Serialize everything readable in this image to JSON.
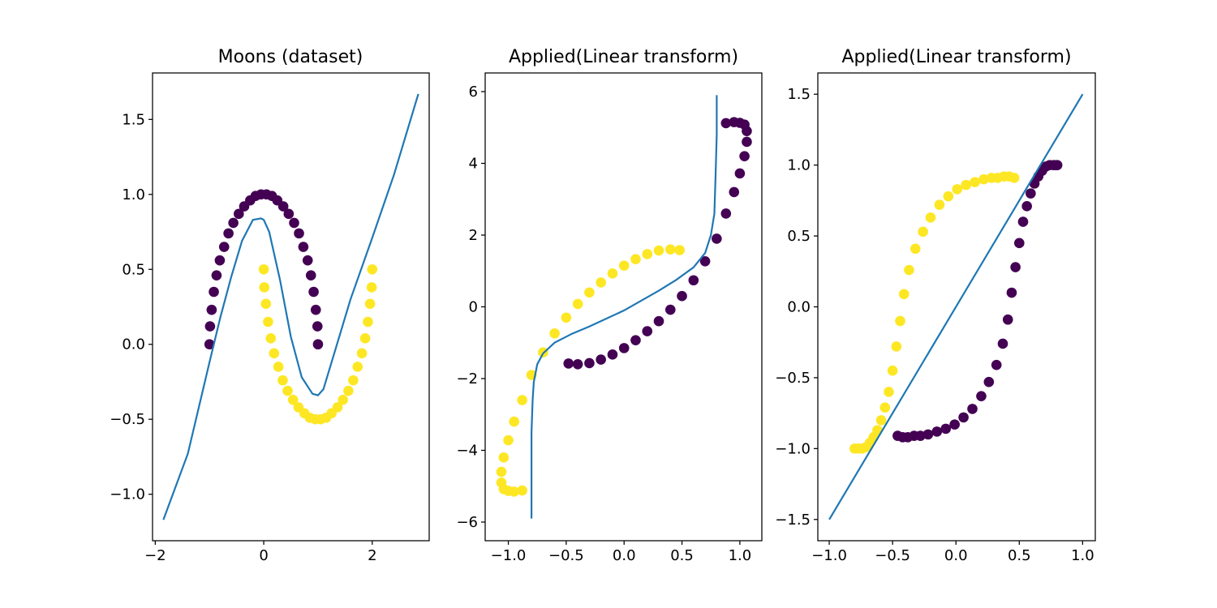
{
  "chart_data": [
    {
      "type": "scatter",
      "title": "Moons (dataset)",
      "xlim": [
        -2.05,
        3.05
      ],
      "ylim": [
        -1.31,
        1.81
      ],
      "xticks": [
        {
          "v": -2,
          "label": "−2"
        },
        {
          "v": 0,
          "label": "0"
        },
        {
          "v": 2,
          "label": "2"
        }
      ],
      "yticks": [
        {
          "v": -1.0,
          "label": "−1.0"
        },
        {
          "v": -0.5,
          "label": "−0.5"
        },
        {
          "v": 0.0,
          "label": "0.0"
        },
        {
          "v": 0.5,
          "label": "0.5"
        },
        {
          "v": 1.0,
          "label": "1.0"
        },
        {
          "v": 1.5,
          "label": "1.5"
        }
      ],
      "series": [
        {
          "kind": "points",
          "color": "#440154",
          "x": [
            -1.0,
            -0.99,
            -0.96,
            -0.92,
            -0.87,
            -0.81,
            -0.73,
            -0.65,
            -0.56,
            -0.46,
            -0.36,
            -0.25,
            -0.15,
            -0.05,
            0.05,
            0.15,
            0.25,
            0.36,
            0.46,
            0.56,
            0.65,
            0.73,
            0.81,
            0.87,
            0.92,
            0.96,
            0.99,
            1.0
          ],
          "y": [
            0.0,
            0.12,
            0.23,
            0.35,
            0.46,
            0.56,
            0.65,
            0.74,
            0.81,
            0.87,
            0.92,
            0.96,
            0.99,
            1.0,
            1.0,
            0.99,
            0.96,
            0.92,
            0.87,
            0.81,
            0.74,
            0.65,
            0.56,
            0.46,
            0.35,
            0.23,
            0.12,
            0.0
          ]
        },
        {
          "kind": "points",
          "color": "#fde725",
          "x": [
            0.0,
            0.01,
            0.04,
            0.08,
            0.13,
            0.19,
            0.27,
            0.35,
            0.44,
            0.54,
            0.64,
            0.75,
            0.85,
            0.95,
            1.05,
            1.15,
            1.25,
            1.36,
            1.46,
            1.56,
            1.65,
            1.73,
            1.81,
            1.87,
            1.92,
            1.96,
            1.99,
            2.0
          ],
          "y": [
            0.5,
            0.38,
            0.27,
            0.15,
            0.04,
            -0.06,
            -0.15,
            -0.24,
            -0.31,
            -0.37,
            -0.42,
            -0.46,
            -0.49,
            -0.5,
            -0.5,
            -0.49,
            -0.46,
            -0.42,
            -0.37,
            -0.31,
            -0.24,
            -0.15,
            -0.06,
            0.04,
            0.15,
            0.27,
            0.38,
            0.5
          ]
        },
        {
          "kind": "line",
          "color": "#1f77b4",
          "x": [
            -1.85,
            -1.4,
            -1.0,
            -0.8,
            -0.6,
            -0.4,
            -0.2,
            -0.05,
            0.0,
            0.1,
            0.3,
            0.5,
            0.7,
            0.9,
            1.0,
            1.1,
            1.3,
            1.6,
            2.0,
            2.4,
            2.85
          ],
          "y": [
            -1.17,
            -0.73,
            -0.12,
            0.18,
            0.45,
            0.69,
            0.83,
            0.84,
            0.83,
            0.75,
            0.43,
            0.05,
            -0.22,
            -0.33,
            -0.34,
            -0.3,
            -0.06,
            0.3,
            0.71,
            1.13,
            1.67
          ]
        }
      ]
    },
    {
      "type": "scatter",
      "title": "Applied(Linear transform)",
      "xlim": [
        -1.2,
        1.19
      ],
      "ylim": [
        -6.52,
        6.52
      ],
      "xticks": [
        {
          "v": -1.0,
          "label": "−1.0"
        },
        {
          "v": -0.5,
          "label": "−0.5"
        },
        {
          "v": 0.0,
          "label": "0.0"
        },
        {
          "v": 0.5,
          "label": "0.5"
        },
        {
          "v": 1.0,
          "label": "1.0"
        }
      ],
      "yticks": [
        {
          "v": -6,
          "label": "−6"
        },
        {
          "v": -4,
          "label": "−4"
        },
        {
          "v": -2,
          "label": "−2"
        },
        {
          "v": 0,
          "label": "0"
        },
        {
          "v": 2,
          "label": "2"
        },
        {
          "v": 4,
          "label": "4"
        },
        {
          "v": 6,
          "label": "6"
        }
      ],
      "series": [
        {
          "kind": "points",
          "color": "#440154",
          "x": [
            -0.48,
            -0.4,
            -0.3,
            -0.2,
            -0.1,
            0.0,
            0.1,
            0.2,
            0.3,
            0.4,
            0.5,
            0.6,
            0.7,
            0.8,
            0.88,
            0.95,
            1.0,
            1.04,
            1.06,
            1.06,
            1.04,
            1.0,
            0.95,
            0.88
          ],
          "y": [
            -1.58,
            -1.6,
            -1.57,
            -1.47,
            -1.33,
            -1.15,
            -0.93,
            -0.68,
            -0.4,
            -0.08,
            0.3,
            0.74,
            1.27,
            1.9,
            2.6,
            3.2,
            3.72,
            4.2,
            4.6,
            4.9,
            5.08,
            5.13,
            5.15,
            5.12
          ]
        },
        {
          "kind": "points",
          "color": "#fde725",
          "x": [
            -0.88,
            -0.95,
            -1.0,
            -1.04,
            -1.06,
            -1.06,
            -1.04,
            -1.0,
            -0.95,
            -0.88,
            -0.8,
            -0.7,
            -0.6,
            -0.5,
            -0.4,
            -0.3,
            -0.2,
            -0.1,
            0.0,
            0.1,
            0.2,
            0.3,
            0.4,
            0.48
          ],
          "y": [
            -5.12,
            -5.15,
            -5.13,
            -5.08,
            -4.9,
            -4.6,
            -4.2,
            -3.72,
            -3.2,
            -2.6,
            -1.9,
            -1.27,
            -0.74,
            -0.3,
            0.08,
            0.4,
            0.68,
            0.93,
            1.15,
            1.33,
            1.47,
            1.57,
            1.6,
            1.58
          ]
        },
        {
          "kind": "line",
          "color": "#1f77b4",
          "x": [
            -0.8,
            -0.8,
            -0.79,
            -0.78,
            -0.75,
            -0.7,
            -0.6,
            -0.45,
            -0.3,
            0.0,
            0.3,
            0.45,
            0.6,
            0.7,
            0.75,
            0.78,
            0.79,
            0.8,
            0.8
          ],
          "y": [
            -5.9,
            -3.5,
            -2.6,
            -2.1,
            -1.6,
            -1.3,
            -1.0,
            -0.75,
            -0.55,
            -0.1,
            0.45,
            0.75,
            1.1,
            1.5,
            2.0,
            2.6,
            3.6,
            4.8,
            5.9
          ]
        }
      ]
    },
    {
      "type": "scatter",
      "title": "Applied(Linear transform)",
      "xlim": [
        -1.09,
        1.1
      ],
      "ylim": [
        -1.65,
        1.65
      ],
      "xticks": [
        {
          "v": -1.0,
          "label": "−1.0"
        },
        {
          "v": -0.5,
          "label": "−0.5"
        },
        {
          "v": 0.0,
          "label": "0.0"
        },
        {
          "v": 0.5,
          "label": "0.5"
        },
        {
          "v": 1.0,
          "label": "1.0"
        }
      ],
      "yticks": [
        {
          "v": -1.5,
          "label": "−1.5"
        },
        {
          "v": -1.0,
          "label": "−1.0"
        },
        {
          "v": -0.5,
          "label": "−0.5"
        },
        {
          "v": 0.0,
          "label": "0.0"
        },
        {
          "v": 0.5,
          "label": "0.5"
        },
        {
          "v": 1.0,
          "label": "1.0"
        },
        {
          "v": 1.5,
          "label": "1.5"
        }
      ],
      "series": [
        {
          "kind": "points",
          "color": "#440154",
          "x": [
            -0.46,
            -0.42,
            -0.38,
            -0.33,
            -0.28,
            -0.22,
            -0.15,
            -0.08,
            -0.01,
            0.06,
            0.13,
            0.2,
            0.26,
            0.32,
            0.37,
            0.41,
            0.44,
            0.47,
            0.5,
            0.53,
            0.56,
            0.59,
            0.62,
            0.65,
            0.68,
            0.71,
            0.74,
            0.77,
            0.79,
            0.8
          ],
          "y": [
            -0.91,
            -0.92,
            -0.92,
            -0.91,
            -0.91,
            -0.9,
            -0.88,
            -0.86,
            -0.83,
            -0.78,
            -0.72,
            -0.63,
            -0.53,
            -0.41,
            -0.26,
            -0.09,
            0.1,
            0.28,
            0.45,
            0.6,
            0.71,
            0.8,
            0.87,
            0.92,
            0.96,
            0.99,
            1.0,
            1.0,
            1.0,
            1.0
          ]
        },
        {
          "kind": "points",
          "color": "#fde725",
          "x": [
            -0.8,
            -0.77,
            -0.74,
            -0.71,
            -0.68,
            -0.65,
            -0.62,
            -0.59,
            -0.56,
            -0.53,
            -0.5,
            -0.47,
            -0.44,
            -0.41,
            -0.37,
            -0.32,
            -0.26,
            -0.2,
            -0.13,
            -0.06,
            0.01,
            0.08,
            0.15,
            0.22,
            0.28,
            0.33,
            0.38,
            0.42,
            0.46
          ],
          "y": [
            -1.0,
            -1.0,
            -1.0,
            -0.99,
            -0.96,
            -0.92,
            -0.87,
            -0.8,
            -0.71,
            -0.6,
            -0.45,
            -0.28,
            -0.1,
            0.09,
            0.26,
            0.41,
            0.53,
            0.63,
            0.72,
            0.78,
            0.83,
            0.86,
            0.88,
            0.9,
            0.91,
            0.91,
            0.92,
            0.92,
            0.91
          ]
        },
        {
          "kind": "line",
          "color": "#1f77b4",
          "x": [
            -1.0,
            1.0
          ],
          "y": [
            -1.5,
            1.5
          ]
        }
      ]
    }
  ]
}
